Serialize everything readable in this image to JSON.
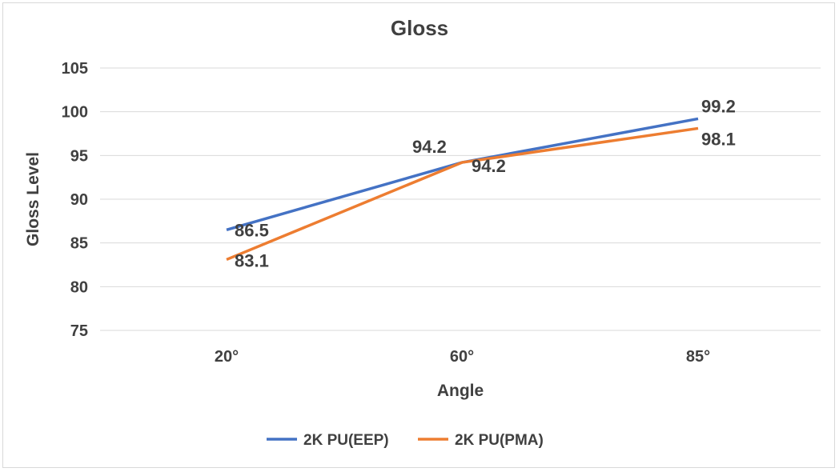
{
  "chart_data": {
    "type": "line",
    "title": "Gloss",
    "xlabel": "Angle",
    "ylabel": "Gloss Level",
    "categories": [
      "20°",
      "60°",
      "85°"
    ],
    "ylim": [
      75,
      105
    ],
    "yticks": [
      "75",
      "80",
      "85",
      "90",
      "95",
      "100",
      "105"
    ],
    "ytick_values": [
      75,
      80,
      85,
      90,
      95,
      100,
      105
    ],
    "grid": true,
    "legend_position": "bottom",
    "series": [
      {
        "name": "2K PU(EEP)",
        "color": "#4472C4",
        "values": [
          86.5,
          94.2,
          99.2
        ],
        "labels": [
          "86.5",
          "94.2",
          "99.2"
        ]
      },
      {
        "name": "2K PU(PMA)",
        "color": "#ED7D31",
        "values": [
          83.1,
          94.2,
          98.1
        ],
        "labels": [
          "83.1",
          "94.2",
          "98.1"
        ]
      }
    ]
  }
}
